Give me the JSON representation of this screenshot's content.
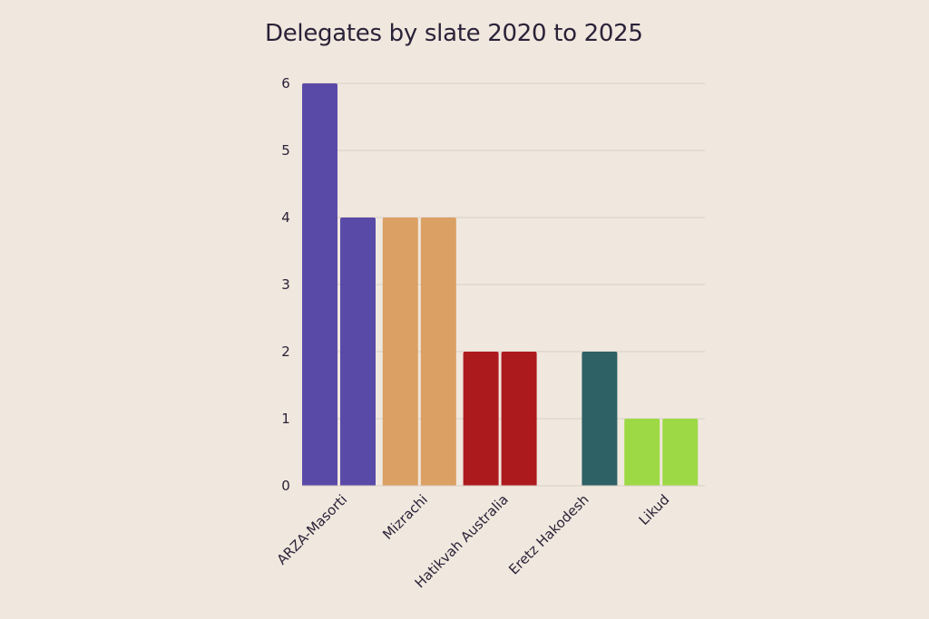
{
  "chart_data": {
    "type": "bar",
    "title": "Delegates by slate 2020 to 2025",
    "categories": [
      "ARZA-Masorti",
      "Mizrachi",
      "Hatikvah Australia",
      "Eretz Hakodesh",
      "Likud"
    ],
    "colors": [
      "#5a4aa8",
      "#dba063",
      "#ad1a1e",
      "#2e6166",
      "#9dd945"
    ],
    "series": [
      {
        "values": [
          6,
          4,
          2,
          0,
          1
        ]
      },
      {
        "values": [
          4,
          4,
          2,
          2,
          1
        ]
      }
    ],
    "yticks": [
      "0",
      "1",
      "2",
      "3",
      "4",
      "5",
      "6"
    ],
    "ylim": [
      0,
      6
    ],
    "grid": true
  }
}
